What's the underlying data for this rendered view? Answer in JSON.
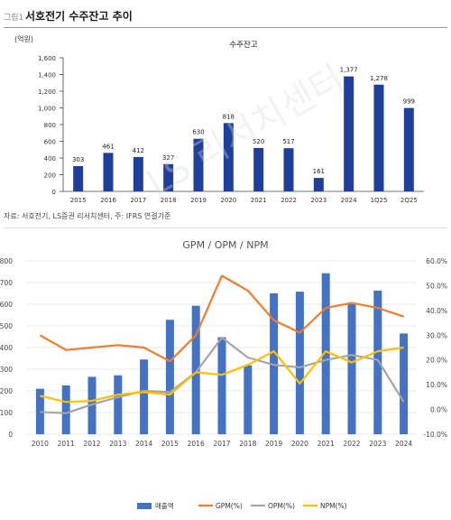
{
  "figure": {
    "number": "그림1",
    "title": "서호전기 수주잔고 추이",
    "source": "자료: 서호전기, LS증권 리서치센터, 주: IFRS 연결기준"
  },
  "chart_data": [
    {
      "type": "bar",
      "title": "수주잔고",
      "ylabel": "(억원)",
      "ylim": [
        0,
        1600
      ],
      "yticks": [
        0,
        200,
        400,
        600,
        800,
        1000,
        1200,
        1400,
        1600
      ],
      "ytick_labels": [
        "0",
        "200",
        "400",
        "600",
        "800",
        "1,000",
        "1,200",
        "1,400",
        "1,600"
      ],
      "categories": [
        "2015",
        "2016",
        "2017",
        "2018",
        "2019",
        "2020",
        "2021",
        "2022",
        "2023",
        "2024",
        "1Q25",
        "2Q25"
      ],
      "values": [
        303,
        461,
        412,
        327,
        630,
        818,
        520,
        517,
        161,
        1377,
        1278,
        999
      ],
      "data_labels": [
        "303",
        "461",
        "412",
        "327",
        "630",
        "818",
        "520",
        "517",
        "161",
        "1,377",
        "1,278",
        "999"
      ],
      "bar_color": "#1f3f9a",
      "grid": false
    },
    {
      "type": "bar+line",
      "title": "GPM / OPM / NPM",
      "categories": [
        "2010",
        "2011",
        "2012",
        "2013",
        "2014",
        "2015",
        "2016",
        "2017",
        "2018",
        "2019",
        "2020",
        "2021",
        "2022",
        "2023",
        "2024"
      ],
      "ylim": [
        0,
        800
      ],
      "yticks": [
        0,
        100,
        200,
        300,
        400,
        500,
        600,
        700,
        800
      ],
      "ytick_labels": [
        "0",
        "100",
        "200",
        "300",
        "400",
        "500",
        "600",
        "700",
        "800"
      ],
      "y2lim": [
        -10,
        60
      ],
      "y2ticks": [
        -10,
        0,
        10,
        20,
        30,
        40,
        50,
        60
      ],
      "y2tick_labels": [
        "-10.0%",
        "0.0%",
        "10.0%",
        "20.0%",
        "30.0%",
        "40.0%",
        "50.0%",
        "60.0%"
      ],
      "bars": {
        "name": "매출액",
        "color": "#4472c4",
        "values": [
          210,
          225,
          265,
          272,
          345,
          528,
          593,
          448,
          318,
          650,
          658,
          743,
          600,
          663,
          465
        ]
      },
      "lines": [
        {
          "name": "GPM(%)",
          "color": "#ed7d31",
          "axis": "right",
          "values": [
            30,
            24,
            25,
            26,
            25,
            19.5,
            30,
            54,
            48,
            36,
            31,
            41,
            43,
            41,
            37.5
          ]
        },
        {
          "name": "OPM(%)",
          "color": "#a5a5a5",
          "axis": "right",
          "values": [
            -1,
            -1.5,
            2,
            5,
            7.5,
            7,
            15,
            29,
            21,
            18,
            17,
            20,
            22,
            20,
            3
          ]
        },
        {
          "name": "NPM(%)",
          "color": "#ffc000",
          "axis": "right",
          "values": [
            5.5,
            3,
            3.5,
            6,
            7,
            6,
            15,
            14,
            18,
            23.5,
            10.5,
            23.5,
            19,
            23.5,
            25
          ]
        }
      ],
      "legend": "bottom",
      "grid": true
    }
  ]
}
